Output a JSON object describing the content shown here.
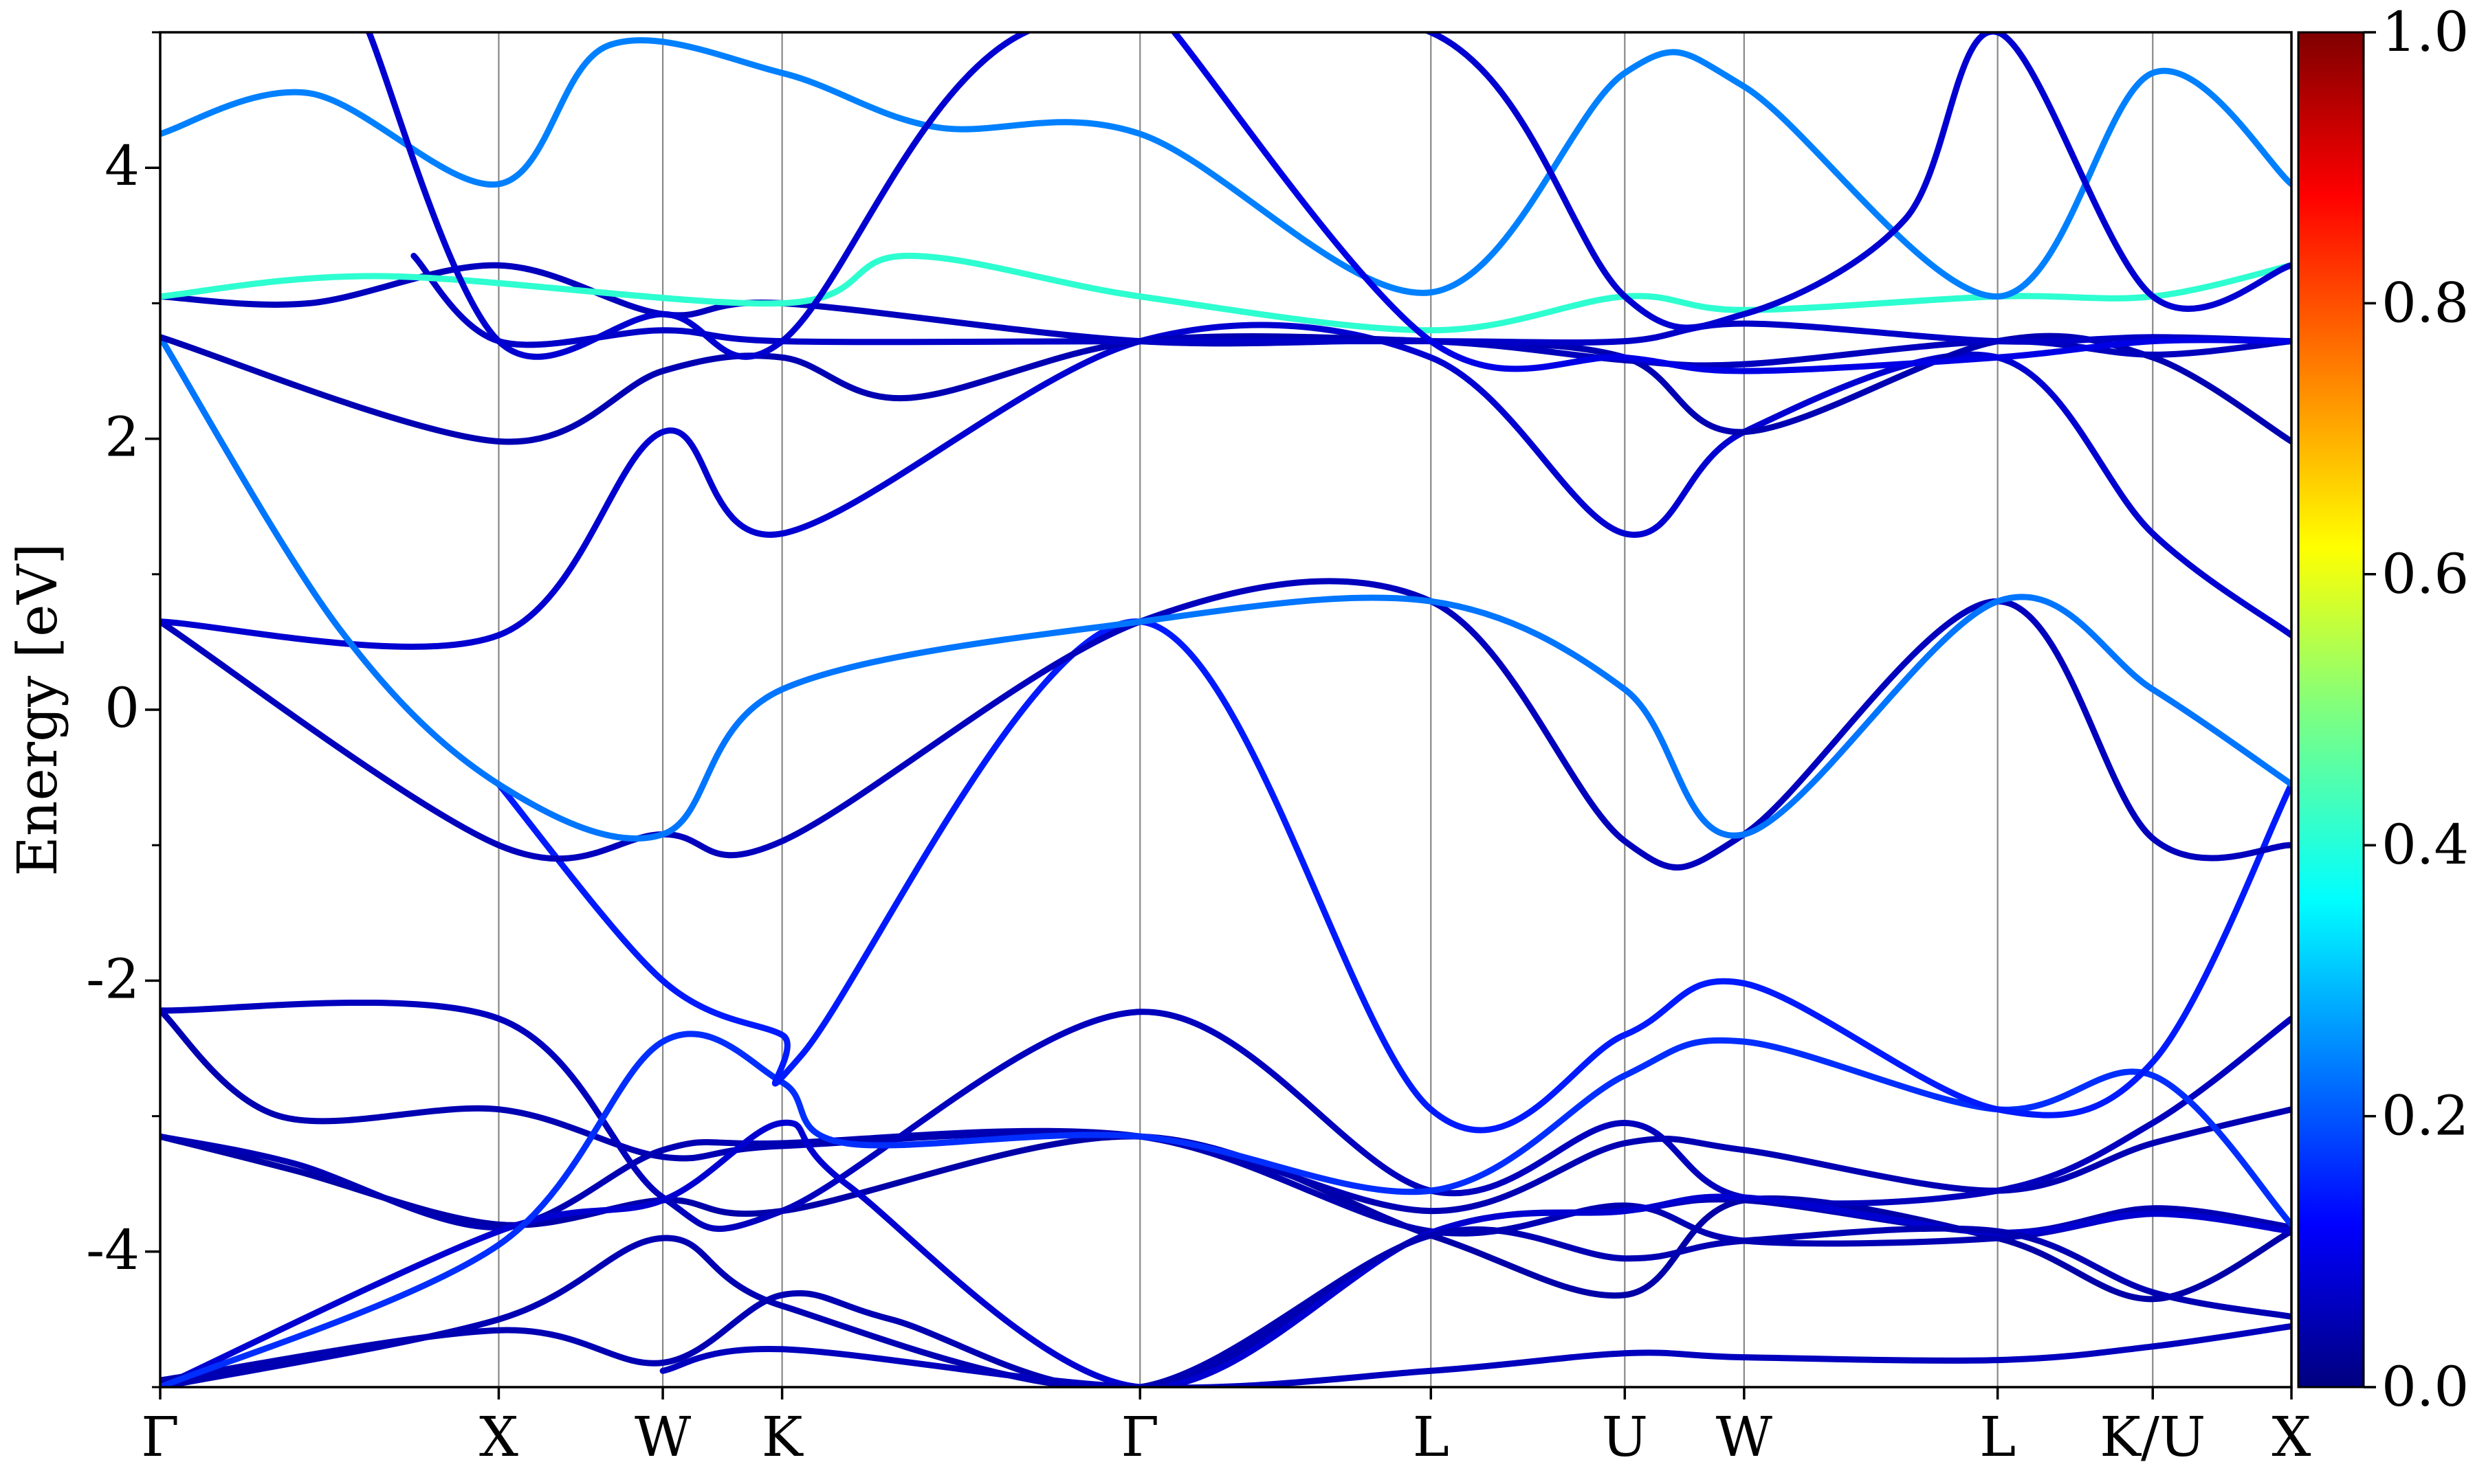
{
  "chart_data": {
    "type": "line",
    "title": "",
    "xlabel": "",
    "ylabel": "Energy [eV]",
    "ylim": [
      -5,
      5
    ],
    "yticks": [
      "4",
      "2",
      "0",
      "-2",
      "-4"
    ],
    "ytick_values": [
      4,
      2,
      0,
      -2,
      -4
    ],
    "xrange": [
      0,
      14.29
    ],
    "kpoints": [
      {
        "label": "Γ",
        "x": 0
      },
      {
        "label": "X",
        "x": 2.27
      },
      {
        "label": "W",
        "x": 3.37
      },
      {
        "label": "K",
        "x": 4.17
      },
      {
        "label": "Γ",
        "x": 6.57
      },
      {
        "label": "L",
        "x": 8.52
      },
      {
        "label": "U",
        "x": 9.82
      },
      {
        "label": "W",
        "x": 10.62
      },
      {
        "label": "L",
        "x": 12.32
      },
      {
        "label": "K/U",
        "x": 13.36
      },
      {
        "label": "X",
        "x": 14.29
      }
    ],
    "colorbar": {
      "colormap": "jet",
      "range": [
        0.0,
        1.0
      ],
      "ticks": [
        "1.0",
        "0.8",
        "0.6",
        "0.4",
        "0.2",
        "0.0"
      ],
      "tick_values": [
        1.0,
        0.8,
        0.6,
        0.4,
        0.2,
        0.0
      ]
    },
    "grid": "vertical lines at k-points",
    "legend": "none",
    "series": [
      {
        "weight": 0.04,
        "points": [
          [
            0,
            -3.15
          ],
          [
            0.9,
            -3.4
          ],
          [
            2.27,
            -3.8
          ],
          [
            3.37,
            -3.62
          ],
          [
            4.17,
            -3.7
          ],
          [
            6.57,
            -3.15
          ],
          [
            8.52,
            -3.88
          ],
          [
            9.82,
            -4.32
          ],
          [
            10.62,
            -3.62
          ],
          [
            12.32,
            -3.9
          ],
          [
            13.36,
            -4.35
          ],
          [
            14.29,
            -3.85
          ]
        ]
      },
      {
        "weight": 0.05,
        "points": [
          [
            0,
            -3.15
          ],
          [
            0.9,
            -3.35
          ],
          [
            2.27,
            -3.82
          ],
          [
            3.37,
            -3.25
          ],
          [
            4.17,
            -3.2
          ],
          [
            6.57,
            -3.15
          ],
          [
            8.52,
            -3.85
          ],
          [
            9.82,
            -3.66
          ],
          [
            10.62,
            -3.92
          ],
          [
            12.32,
            -3.9
          ],
          [
            13.36,
            -3.72
          ],
          [
            14.29,
            -3.82
          ]
        ]
      },
      {
        "weight": 0.05,
        "points": [
          [
            0,
            -2.22
          ],
          [
            0.8,
            -3.0
          ],
          [
            2.27,
            -2.95
          ],
          [
            3.37,
            -3.3
          ],
          [
            4.17,
            -3.22
          ],
          [
            6.57,
            -3.15
          ],
          [
            8.52,
            -3.7
          ],
          [
            9.82,
            -3.2
          ],
          [
            10.62,
            -3.25
          ],
          [
            12.32,
            -3.55
          ],
          [
            13.36,
            -3.2
          ],
          [
            14.29,
            -2.95
          ]
        ]
      },
      {
        "weight": 0.06,
        "points": [
          [
            0,
            -2.22
          ],
          [
            2.27,
            -2.28
          ],
          [
            3.37,
            -3.6
          ],
          [
            4.17,
            -3.7
          ],
          [
            6.57,
            -2.23
          ],
          [
            8.52,
            -3.55
          ],
          [
            9.82,
            -3.05
          ],
          [
            10.62,
            -3.6
          ],
          [
            12.32,
            -3.55
          ],
          [
            13.36,
            -3.05
          ],
          [
            14.29,
            -2.28
          ]
        ]
      },
      {
        "weight": 0.05,
        "points": [
          [
            0,
            -5.0
          ],
          [
            2.27,
            -4.5
          ],
          [
            3.37,
            -3.9
          ],
          [
            4.17,
            -4.4
          ],
          [
            6.57,
            -5.0
          ],
          [
            8.52,
            -3.86
          ],
          [
            9.82,
            -3.7
          ],
          [
            10.62,
            -3.62
          ],
          [
            12.32,
            -3.86
          ],
          [
            13.36,
            -3.68
          ],
          [
            14.29,
            -3.82
          ]
        ]
      },
      {
        "weight": 0.08,
        "points": [
          [
            0,
            -5.0
          ],
          [
            2.27,
            -3.85
          ],
          [
            3.37,
            -3.62
          ],
          [
            4.17,
            -3.05
          ],
          [
            4.6,
            -3.5
          ],
          [
            6.57,
            -5.0
          ],
          [
            8.52,
            -3.86
          ],
          [
            9.82,
            -3.7
          ],
          [
            10.62,
            -3.6
          ],
          [
            12.32,
            -3.86
          ],
          [
            13.36,
            -3.72
          ],
          [
            14.29,
            -3.85
          ]
        ]
      },
      {
        "weight": 0.05,
        "points": [
          [
            0,
            -4.95
          ],
          [
            2.27,
            -4.58
          ],
          [
            3.37,
            -4.82
          ],
          [
            4.17,
            -4.32
          ],
          [
            4.9,
            -4.5
          ],
          [
            6.57,
            -5.0
          ],
          [
            8.52,
            -3.88
          ],
          [
            9.82,
            -4.05
          ],
          [
            10.62,
            -3.92
          ],
          [
            12.32,
            -3.85
          ],
          [
            13.36,
            -4.3
          ],
          [
            14.29,
            -4.48
          ]
        ]
      },
      {
        "weight": 0.17,
        "points": [
          [
            0,
            -5.0
          ],
          [
            2.27,
            -3.95
          ],
          [
            3.37,
            -2.45
          ],
          [
            4.17,
            -2.75
          ],
          [
            4.6,
            -3.2
          ],
          [
            6.57,
            -3.15
          ],
          [
            8.52,
            -3.55
          ],
          [
            9.82,
            -2.7
          ],
          [
            10.62,
            -2.45
          ],
          [
            12.32,
            -2.95
          ],
          [
            13.36,
            -2.7
          ],
          [
            14.29,
            -3.8
          ]
        ]
      },
      {
        "weight": 0.15,
        "points": [
          [
            2.27,
            -0.55
          ],
          [
            3.37,
            -2.0
          ],
          [
            4.17,
            -2.4
          ],
          [
            4.3,
            -2.55
          ],
          [
            6.57,
            0.65
          ],
          [
            8.52,
            -2.95
          ],
          [
            9.82,
            -2.4
          ],
          [
            10.62,
            -2.02
          ],
          [
            12.32,
            -2.95
          ],
          [
            13.36,
            -2.6
          ],
          [
            14.29,
            -0.55
          ]
        ]
      },
      {
        "weight": 0.06,
        "points": [
          [
            0,
            0.65
          ],
          [
            2.27,
            -1.0
          ],
          [
            3.37,
            -0.92
          ],
          [
            4.17,
            -0.97
          ],
          [
            6.57,
            0.65
          ],
          [
            8.52,
            0.8
          ],
          [
            9.82,
            -0.97
          ],
          [
            10.62,
            -0.92
          ],
          [
            12.32,
            0.8
          ],
          [
            13.36,
            -0.95
          ],
          [
            14.29,
            -1.0
          ]
        ]
      },
      {
        "weight": 0.08,
        "points": [
          [
            0,
            0.65
          ],
          [
            2.27,
            0.55
          ],
          [
            3.37,
            2.05
          ],
          [
            4.17,
            1.3
          ],
          [
            6.57,
            2.72
          ],
          [
            8.52,
            2.6
          ],
          [
            9.82,
            1.3
          ],
          [
            10.62,
            2.05
          ],
          [
            12.32,
            2.6
          ],
          [
            13.36,
            1.3
          ],
          [
            14.29,
            0.55
          ]
        ]
      },
      {
        "weight": 0.24,
        "points": [
          [
            0,
            2.75
          ],
          [
            1.2,
            0.6
          ],
          [
            2.27,
            -0.55
          ],
          [
            3.37,
            -0.92
          ],
          [
            4.17,
            0.15
          ],
          [
            6.57,
            0.65
          ],
          [
            8.52,
            0.8
          ],
          [
            9.82,
            0.15
          ],
          [
            10.62,
            -0.92
          ],
          [
            12.32,
            0.8
          ],
          [
            13.36,
            0.15
          ],
          [
            14.29,
            -0.55
          ]
        ]
      },
      {
        "weight": 0.05,
        "points": [
          [
            0,
            2.75
          ],
          [
            2.27,
            1.98
          ],
          [
            3.37,
            2.5
          ],
          [
            4.17,
            2.6
          ],
          [
            5.0,
            2.3
          ],
          [
            6.57,
            2.72
          ],
          [
            8.52,
            2.72
          ],
          [
            9.82,
            2.6
          ],
          [
            10.62,
            2.05
          ],
          [
            12.32,
            2.72
          ],
          [
            13.36,
            2.6
          ],
          [
            14.29,
            1.98
          ]
        ]
      },
      {
        "weight": 0.06,
        "points": [
          [
            0,
            3.05
          ],
          [
            1.0,
            3.0
          ],
          [
            2.27,
            3.28
          ],
          [
            3.37,
            2.92
          ],
          [
            4.17,
            3.0
          ],
          [
            6.57,
            2.72
          ],
          [
            8.52,
            2.72
          ],
          [
            9.82,
            2.58
          ],
          [
            10.62,
            2.55
          ],
          [
            12.32,
            2.72
          ],
          [
            13.36,
            2.62
          ],
          [
            14.29,
            2.72
          ]
        ]
      },
      {
        "weight": 0.07,
        "points": [
          [
            1.7,
            3.35
          ],
          [
            2.27,
            2.72
          ],
          [
            3.37,
            2.8
          ],
          [
            4.17,
            2.72
          ],
          [
            6.57,
            2.72
          ],
          [
            8.52,
            2.72
          ],
          [
            9.82,
            2.72
          ],
          [
            10.62,
            2.85
          ],
          [
            12.32,
            2.72
          ],
          [
            13.36,
            2.75
          ],
          [
            14.29,
            2.72
          ]
        ]
      },
      {
        "weight": 0.42,
        "points": [
          [
            0,
            3.05
          ],
          [
            1.5,
            3.2
          ],
          [
            4.17,
            3.0
          ],
          [
            5.0,
            3.35
          ],
          [
            6.57,
            3.05
          ],
          [
            8.52,
            2.8
          ],
          [
            9.82,
            3.05
          ],
          [
            10.62,
            2.95
          ],
          [
            12.32,
            3.05
          ],
          [
            13.36,
            3.05
          ],
          [
            14.29,
            3.28
          ]
        ]
      },
      {
        "weight": 0.25,
        "points": [
          [
            0,
            4.25
          ],
          [
            1.0,
            4.55
          ],
          [
            2.27,
            3.88
          ],
          [
            3.0,
            4.9
          ],
          [
            4.17,
            4.7
          ],
          [
            5.2,
            4.3
          ],
          [
            6.57,
            4.25
          ],
          [
            8.52,
            3.08
          ],
          [
            9.82,
            4.7
          ],
          [
            10.62,
            4.6
          ],
          [
            12.32,
            3.05
          ],
          [
            13.36,
            4.7
          ],
          [
            14.29,
            3.88
          ]
        ]
      },
      {
        "weight": 0.08,
        "points": [
          [
            1.4,
            5.0
          ],
          [
            2.27,
            2.72
          ],
          [
            3.37,
            2.92
          ],
          [
            4.17,
            2.72
          ],
          [
            5.8,
            5.0
          ],
          [
            8.52,
            5.0
          ],
          [
            9.82,
            3.05
          ],
          [
            10.62,
            2.92
          ],
          [
            11.7,
            3.62
          ],
          [
            12.32,
            5.0
          ],
          [
            13.36,
            3.05
          ],
          [
            14.29,
            3.28
          ]
        ]
      },
      {
        "weight": 0.1,
        "points": [
          [
            6.8,
            5.0
          ],
          [
            8.52,
            2.72
          ],
          [
            9.82,
            2.6
          ],
          [
            10.62,
            2.5
          ],
          [
            12.32,
            2.6
          ],
          [
            13.36,
            2.72
          ],
          [
            14.29,
            2.72
          ]
        ]
      },
      {
        "weight": 0.06,
        "points": [
          [
            3.37,
            -4.88
          ],
          [
            4.17,
            -4.72
          ],
          [
            6.57,
            -5.0
          ],
          [
            8.52,
            -4.88
          ],
          [
            9.82,
            -4.75
          ],
          [
            10.62,
            -4.78
          ],
          [
            12.32,
            -4.8
          ],
          [
            13.36,
            -4.7
          ],
          [
            14.29,
            -4.55
          ]
        ]
      }
    ]
  }
}
